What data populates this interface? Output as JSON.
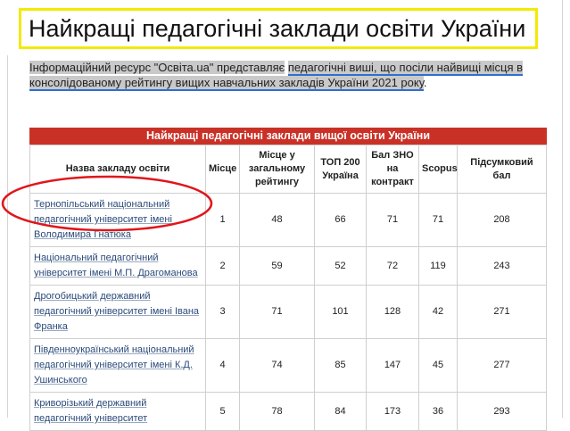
{
  "header": {
    "title": "Найкращі педагогічні заклади освіти України"
  },
  "intro": {
    "lead": "Інформаційний ресурс \"Освіта.ua\" представляє",
    "link": "педагогічні виші, що посіли найвищі місця в консолідованому рейтингу вищих навчальних закладів України 2021 року",
    "tail": "."
  },
  "table": {
    "caption": "Найкращі педагогічні заклади вищої освіти України",
    "columns": [
      "Назва закладу освіти",
      "Місце",
      "Місце у загальному рейтингу",
      "ТОП 200 Україна",
      "Бал ЗНО на контракт",
      "Scopus",
      "Підсумковий бал"
    ],
    "rows": [
      [
        "Тернопільський національний педагогічний університет імені Володимира Гнатюка",
        1,
        48,
        66,
        71,
        71,
        208
      ],
      [
        "Національний педагогічний університет імені М.П. Драгоманова",
        2,
        59,
        52,
        72,
        119,
        243
      ],
      [
        "Дрогобицький державний педагогічний університет імені Івана Франка",
        3,
        71,
        101,
        128,
        42,
        271
      ],
      [
        "Південноукраїнський національний педагогічний університет імені К.Д. Ушинського",
        4,
        74,
        85,
        147,
        45,
        277
      ],
      [
        "Криворізький державний педагогічний університет",
        5,
        78,
        84,
        173,
        36,
        293
      ]
    ]
  }
}
